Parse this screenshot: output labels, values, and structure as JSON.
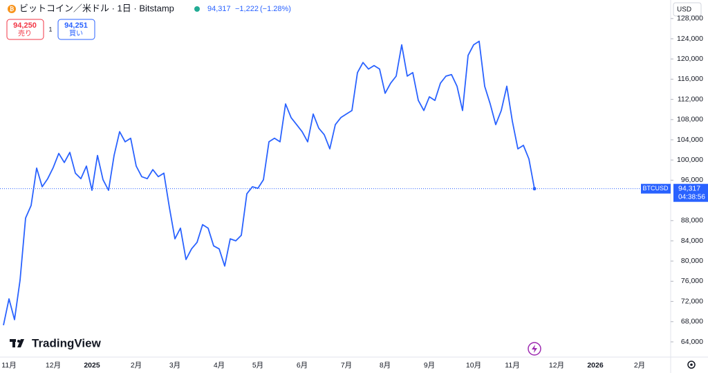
{
  "chart_data": {
    "type": "line",
    "title": "ビットコイン／米ドル · 1日 · Bitstamp",
    "last": {
      "value": 94317,
      "label": "94,317"
    },
    "change": "−1,222",
    "change_pct": "(−1.28%)",
    "sell": {
      "price": "94,250",
      "label": "売り"
    },
    "buy": {
      "price": "94,251",
      "label": "買い"
    },
    "spread": "1",
    "currency": "USD",
    "symbol": "BTCUSD",
    "countdown": "04:38:56",
    "brand": "TradingView",
    "color": "#2962ff",
    "categories": [
      null,
      "11月",
      null,
      null,
      null,
      null,
      null,
      null,
      null,
      "12月",
      null,
      null,
      null,
      null,
      null,
      null,
      "2025",
      null,
      null,
      null,
      null,
      null,
      null,
      null,
      "2月",
      null,
      null,
      null,
      null,
      null,
      null,
      "3月",
      null,
      null,
      null,
      null,
      null,
      null,
      null,
      "4月",
      null,
      null,
      null,
      null,
      null,
      null,
      "5月",
      null,
      null,
      null,
      null,
      null,
      null,
      null,
      "6月",
      null,
      null,
      null,
      null,
      null,
      null,
      null,
      "7月",
      null,
      null,
      null,
      null,
      null,
      null,
      "8月",
      null,
      null,
      null,
      null,
      null,
      null,
      null,
      "9月",
      null,
      null,
      null,
      null,
      null,
      null,
      null,
      "10月",
      null,
      null,
      null,
      null,
      null,
      null,
      "11月",
      null,
      null,
      null,
      null,
      null,
      null,
      null,
      "12月",
      null,
      null,
      null,
      null,
      null,
      null,
      "2026",
      null,
      null,
      null,
      null,
      null,
      null,
      null,
      "2月",
      null,
      null,
      null,
      null,
      null
    ],
    "values": [
      67300,
      72500,
      68400,
      76200,
      88500,
      91000,
      98400,
      94700,
      96300,
      98500,
      101300,
      99500,
      101500,
      97400,
      96300,
      98800,
      94000,
      100900,
      96100,
      94000,
      100900,
      105600,
      103600,
      104300,
      98800,
      96700,
      96300,
      98100,
      96700,
      97400,
      90600,
      84400,
      86500,
      80300,
      82400,
      83700,
      87200,
      86500,
      83000,
      82400,
      79000,
      84400,
      84000,
      85100,
      93300,
      94700,
      94400,
      96100,
      103600,
      104300,
      103600,
      111100,
      108400,
      107000,
      105600,
      103600,
      109100,
      106300,
      105000,
      102200,
      107000,
      108400,
      109100,
      109800,
      117300,
      119300,
      118000,
      118700,
      118000,
      113200,
      115200,
      116600,
      122800,
      116600,
      117300,
      111800,
      109800,
      112500,
      111800,
      115200,
      116600,
      116900,
      114600,
      109800,
      120700,
      122800,
      123500,
      114600,
      111100,
      107000,
      109800,
      114600,
      107700,
      102200,
      102900,
      100200,
      94317,
      null,
      null,
      null,
      null,
      null,
      null,
      null,
      null,
      null,
      null,
      null,
      null,
      null,
      null,
      null,
      null,
      null,
      null,
      null,
      null,
      null,
      null,
      null,
      null
    ],
    "ylim": [
      61123,
      131671
    ],
    "yticks": [
      {
        "value": 64000,
        "label": "64,000"
      },
      {
        "value": 68000,
        "label": "68,000"
      },
      {
        "value": 72000,
        "label": "72,000"
      },
      {
        "value": 76000,
        "label": "76,000"
      },
      {
        "value": 80000,
        "label": "80,000"
      },
      {
        "value": 84000,
        "label": "84,000"
      },
      {
        "value": 88000,
        "label": "88,000"
      },
      {
        "value": 96000,
        "label": "96,000"
      },
      {
        "value": 100000,
        "label": "100,000"
      },
      {
        "value": 104000,
        "label": "104,000"
      },
      {
        "value": 108000,
        "label": "108,000"
      },
      {
        "value": 112000,
        "label": "112,000"
      },
      {
        "value": 116000,
        "label": "116,000"
      },
      {
        "value": 120000,
        "label": "120,000"
      },
      {
        "value": 124000,
        "label": "124,000"
      },
      {
        "value": 128000,
        "label": "128,000"
      }
    ],
    "grid": false
  }
}
